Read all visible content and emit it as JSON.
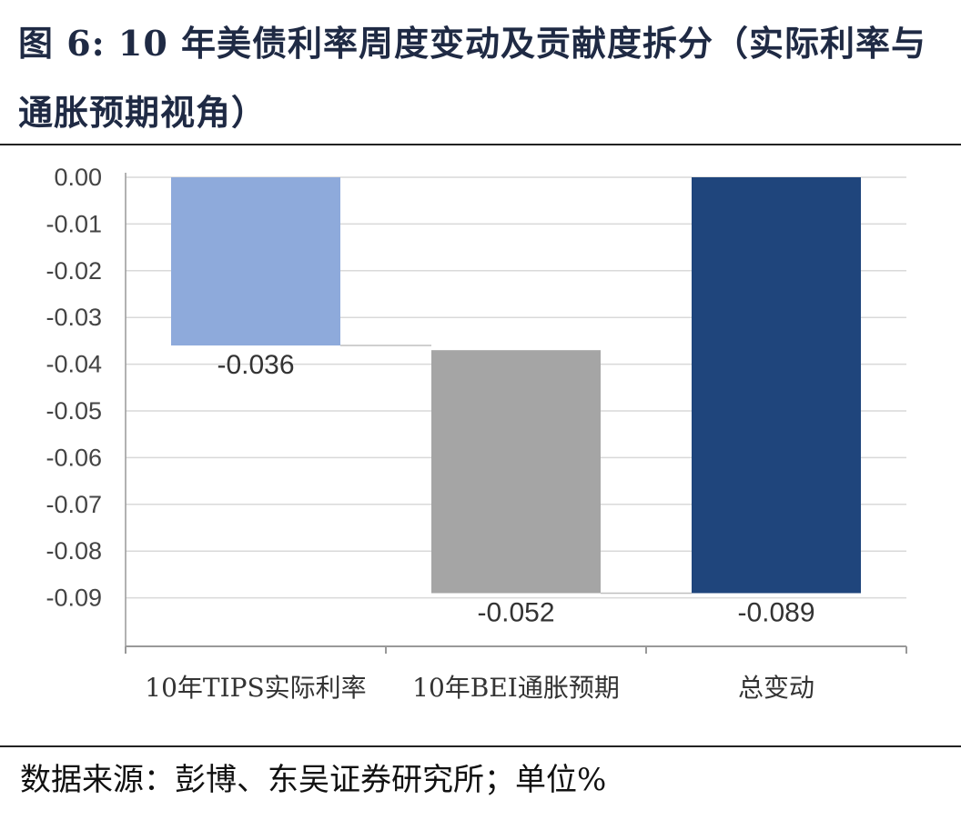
{
  "figure": {
    "title": "图 6:  10 年美债利率周度变动及贡献度拆分（实际利率与通胀预期视角）",
    "source": "数据来源：彭博、东吴证券研究所；单位%"
  },
  "chart_data": {
    "type": "bar",
    "categories": [
      "10年TIPS实际利率",
      "10年BEI通胀预期",
      "总变动"
    ],
    "series": [
      {
        "values": [
          -0.036,
          -0.052,
          -0.089
        ],
        "data_labels": [
          "-0.036",
          "-0.052",
          "-0.089"
        ],
        "colors": [
          "#8eaadb",
          "#a5a5a5",
          "#1f457c"
        ]
      }
    ],
    "waterfall_steps": [
      [
        0,
        -0.036
      ],
      [
        -0.037,
        -0.089
      ],
      [
        0,
        -0.089
      ]
    ],
    "ylim": [
      -0.1,
      0
    ],
    "yticks": [
      "0.00",
      "-0.01",
      "-0.02",
      "-0.03",
      "-0.04",
      "-0.05",
      "-0.06",
      "-0.07",
      "-0.08",
      "-0.09"
    ],
    "grid": true,
    "legend": "none",
    "xlabel": "",
    "ylabel": ""
  }
}
